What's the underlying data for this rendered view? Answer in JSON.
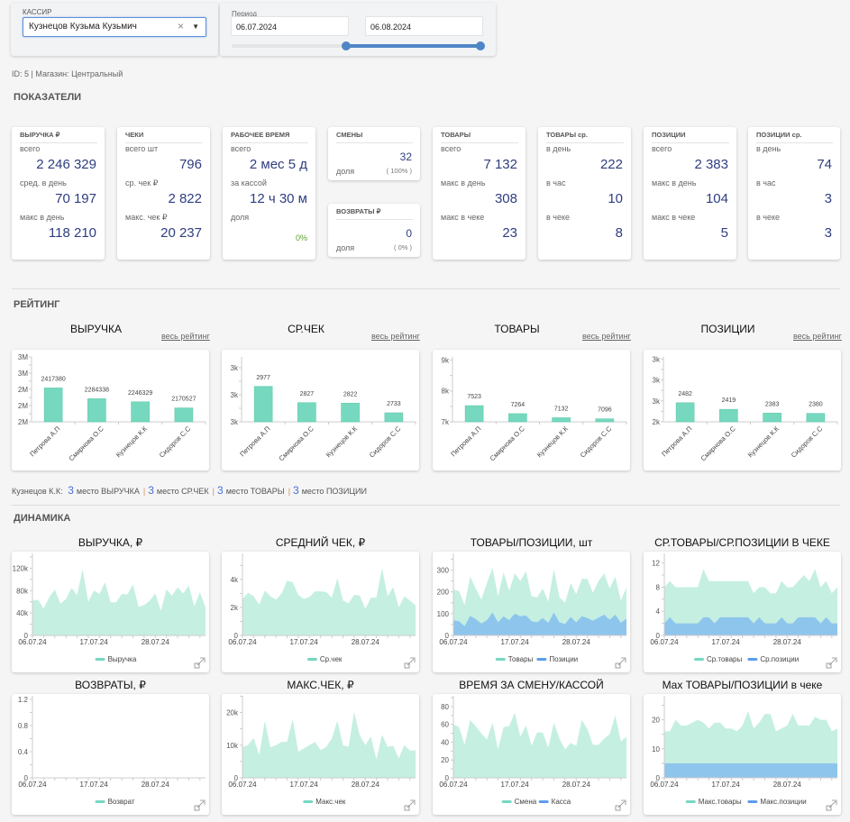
{
  "filters": {
    "cashier_label": "КАССИР",
    "cashier_value": "Кузнецов Кузьма Кузьмич",
    "clear_icon": "×",
    "dropdown_icon": "▼",
    "period_label": "Период",
    "date_from": "06.07.2024",
    "date_to": "06.08.2024",
    "period_slider_range": [
      0.46,
      1.0
    ]
  },
  "info_line": "ID: 5 | Магазин: Центральный",
  "sections": {
    "kpi": "ПОКАЗАТЕЛИ",
    "rating": "РЕЙТИНГ",
    "dynamics": "ДИНАМИКА"
  },
  "kpi_cards": [
    {
      "title": "ВЫРУЧКА ₽",
      "rows": [
        {
          "label": "всего",
          "value": "2 246 329"
        },
        {
          "label": "сред. в день",
          "value": "70 197"
        },
        {
          "label": "макс в день",
          "value": "118 210"
        }
      ]
    },
    {
      "title": "ЧЕКИ",
      "rows": [
        {
          "label": "всего шт",
          "value": "796"
        },
        {
          "label": "ср. чек ₽",
          "value": "2 822"
        },
        {
          "label": "макс. чек ₽",
          "value": "20 237"
        }
      ]
    },
    {
      "title": "РАБОЧЕЕ ВРЕМЯ",
      "rows": [
        {
          "label": "всего",
          "value": "2 мес 5 д"
        },
        {
          "label": "за кассой",
          "value": "12 ч 30 м"
        },
        {
          "label": "доля",
          "value": "0%"
        }
      ]
    },
    {
      "title": "СМЕНЫ",
      "value": "32",
      "share_label": "доля",
      "share": "( 100% )"
    },
    {
      "title": "ВОЗВРАТЫ ₽",
      "value": "0",
      "share_label": "доля",
      "share": "( 0% )"
    },
    {
      "title": "ТОВАРЫ",
      "rows": [
        {
          "label": "всего",
          "value": "7 132"
        },
        {
          "label": "макс в день",
          "value": "308"
        },
        {
          "label": "макс в чеке",
          "value": "23"
        }
      ]
    },
    {
      "title": "ТОВАРЫ ср.",
      "rows": [
        {
          "label": "в день",
          "value": "222"
        },
        {
          "label": "в час",
          "value": "10"
        },
        {
          "label": "в чеке",
          "value": "8"
        }
      ]
    },
    {
      "title": "ПОЗИЦИИ",
      "rows": [
        {
          "label": "всего",
          "value": "2 383"
        },
        {
          "label": "макс в день",
          "value": "104"
        },
        {
          "label": "макс в чеке",
          "value": "5"
        }
      ]
    },
    {
      "title": "ПОЗИЦИИ ср.",
      "rows": [
        {
          "label": "в день",
          "value": "74"
        },
        {
          "label": "в час",
          "value": "3"
        },
        {
          "label": "в чеке",
          "value": "3"
        }
      ]
    }
  ],
  "rating_link": "весь рейтинг",
  "rating_summary": {
    "name": "Кузнецов К.К:",
    "items": [
      {
        "place": "3",
        "text": "место ВЫРУЧКА"
      },
      {
        "place": "3",
        "text": "место СР.ЧЕК"
      },
      {
        "place": "3",
        "text": "место ТОВАРЫ"
      },
      {
        "place": "3",
        "text": "место ПОЗИЦИИ"
      }
    ],
    "separator": "|"
  },
  "colors": {
    "bar": "#76d9bf",
    "green_fill": "#c5efe1",
    "green_legend": "#76d7bf",
    "blue_fill": "#8ec5ec",
    "blue_legend": "#5b9bef",
    "accent": "#4a6fd8"
  },
  "chart_data": [
    {
      "type": "bar",
      "title": "ВЫРУЧКА",
      "categories": [
        "Петрова А.П",
        "Смирнова О.С",
        "Кузнецов К.К",
        "Сидоров С.С"
      ],
      "values": [
        2417380,
        2284338,
        2246329,
        2170527
      ],
      "ylim": [
        2000000,
        2800000
      ],
      "yticks": [
        2000000,
        2200000,
        2400000,
        2600000,
        2800000
      ],
      "ytick_labels": [
        "2M",
        "2M",
        "2M",
        "3M",
        "3M"
      ]
    },
    {
      "type": "bar",
      "title": "СР.ЧЕК",
      "categories": [
        "Петрова А.П",
        "Смирнова О.С",
        "Кузнецов К.К",
        "Сидоров С.С"
      ],
      "values": [
        2977,
        2827,
        2822,
        2733
      ],
      "ylim": [
        2650,
        3250
      ],
      "yticks": [
        2650,
        2900,
        3150
      ],
      "ytick_labels": [
        "3k",
        "3k",
        "3k"
      ]
    },
    {
      "type": "bar",
      "title": "ТОВАРЫ",
      "categories": [
        "Петрова А.П",
        "Смирнова О.С",
        "Кузнецов К.К",
        "Сидоров С.С"
      ],
      "values": [
        7523,
        7264,
        7132,
        7096
      ],
      "ylim": [
        7000,
        9100
      ],
      "yticks": [
        7000,
        8000,
        9000
      ],
      "ytick_labels": [
        "7k",
        "8k",
        "9k"
      ]
    },
    {
      "type": "bar",
      "title": "ПОЗИЦИИ",
      "categories": [
        "Петрова А.П",
        "Смирнова О.С",
        "Кузнецов К.К",
        "Сидоров С.С"
      ],
      "values": [
        2482,
        2419,
        2383,
        2380
      ],
      "ylim": [
        2300,
        2920
      ],
      "yticks": [
        2300,
        2500,
        2700,
        2900
      ],
      "ytick_labels": [
        "2k",
        "3k",
        "3k",
        "3k"
      ]
    },
    {
      "type": "area",
      "title": "ВЫРУЧКА, ₽",
      "xticks": [
        "06.07.24",
        "17.07.24",
        "28.07.24"
      ],
      "ylim": [
        0,
        140000
      ],
      "yticks": [
        0,
        40000,
        80000,
        120000
      ],
      "ytick_labels": [
        "0",
        "40k",
        "80k",
        "120k"
      ],
      "series": [
        {
          "name": "Выручка",
          "color": "green",
          "values": [
            62000,
            64000,
            48000,
            68000,
            82000,
            57000,
            65000,
            85000,
            72000,
            118000,
            60000,
            80000,
            74000,
            95000,
            59000,
            59000,
            74000,
            73000,
            91000,
            51000,
            54000,
            62000,
            75000,
            44000,
            82000,
            71000,
            86000,
            75000,
            89000,
            52000,
            77000,
            50000
          ]
        }
      ]
    },
    {
      "type": "area",
      "title": "СРЕДНИЙ ЧЕК, ₽",
      "xticks": [
        "06.07.24",
        "17.07.24",
        "28.07.24"
      ],
      "ylim": [
        0,
        5600
      ],
      "yticks": [
        0,
        2000,
        4000
      ],
      "ytick_labels": [
        "0",
        "2k",
        "4k"
      ],
      "series": [
        {
          "name": "Ср.чек",
          "color": "green",
          "values": [
            2600,
            3050,
            2800,
            2200,
            3200,
            2800,
            2550,
            3000,
            3900,
            3800,
            2900,
            2600,
            2750,
            3150,
            3150,
            3100,
            2700,
            4100,
            2500,
            2300,
            2900,
            2850,
            1900,
            2700,
            2700,
            4800,
            2800,
            3450,
            2000,
            2800,
            2500,
            2150
          ]
        }
      ]
    },
    {
      "type": "area",
      "title": "ТОВАРЫ/ПОЗИЦИИ, шт",
      "xticks": [
        "06.07.24",
        "17.07.24",
        "28.07.24"
      ],
      "ylim": [
        0,
        360
      ],
      "yticks": [
        0,
        100,
        200,
        300
      ],
      "ytick_labels": [
        "0",
        "100",
        "200",
        "300"
      ],
      "series": [
        {
          "name": "Товары",
          "color": "green",
          "values": [
            210,
            205,
            140,
            270,
            215,
            165,
            240,
            310,
            180,
            290,
            205,
            285,
            250,
            295,
            180,
            175,
            215,
            155,
            305,
            175,
            150,
            240,
            190,
            260,
            260,
            195,
            250,
            285,
            215,
            270,
            160,
            220
          ]
        },
        {
          "name": "Позиции",
          "color": "blue",
          "values": [
            70,
            65,
            42,
            90,
            75,
            55,
            70,
            105,
            60,
            88,
            70,
            100,
            88,
            92,
            65,
            60,
            80,
            58,
            105,
            60,
            52,
            85,
            60,
            88,
            80,
            68,
            82,
            95,
            72,
            95,
            58,
            78
          ]
        }
      ]
    },
    {
      "type": "area",
      "title": "СР.ТОВАРЫ/СР.ПОЗИЦИИ В ЧЕКЕ",
      "xticks": [
        "06.07.24",
        "17.07.24",
        "28.07.24"
      ],
      "ylim": [
        0,
        13
      ],
      "yticks": [
        0,
        4,
        8,
        12
      ],
      "ytick_labels": [
        "0",
        "4",
        "8",
        "12"
      ],
      "series": [
        {
          "name": "Ср.товары",
          "color": "green",
          "values": [
            8,
            9,
            8,
            8,
            8,
            8,
            8,
            11,
            9,
            9,
            9,
            9,
            9,
            9,
            9,
            9,
            7,
            8,
            8,
            7,
            7,
            9,
            8,
            8,
            9,
            10,
            9,
            11,
            8,
            9,
            7,
            8
          ]
        },
        {
          "name": "Ср.позиции",
          "color": "blue",
          "values": [
            2,
            3,
            2,
            2,
            2,
            2,
            2,
            3,
            3,
            2,
            3,
            3,
            3,
            3,
            3,
            3,
            2,
            3,
            2,
            2,
            2,
            3,
            2,
            2,
            3,
            3,
            3,
            3,
            2,
            3,
            2,
            2
          ]
        }
      ]
    },
    {
      "type": "area",
      "title": "ВОЗВРАТЫ, ₽",
      "xticks": [
        "06.07.24",
        "17.07.24",
        "28.07.24"
      ],
      "ylim": [
        0,
        1.2
      ],
      "yticks": [
        0,
        0.4,
        0.8,
        1.2
      ],
      "ytick_labels": [
        "0",
        "0.4",
        "0.8",
        "1.2"
      ],
      "series": [
        {
          "name": "Возврат",
          "color": "green",
          "values": [
            0,
            0,
            0,
            0,
            0,
            0,
            0,
            0,
            0,
            0,
            0,
            0,
            0,
            0,
            0,
            0,
            0,
            0,
            0,
            0,
            0,
            0,
            0,
            0,
            0,
            0,
            0,
            0,
            0,
            0,
            0,
            0
          ]
        }
      ]
    },
    {
      "type": "area",
      "title": "МАКС.ЧЕК, ₽",
      "xticks": [
        "06.07.24",
        "17.07.24",
        "28.07.24"
      ],
      "ylim": [
        0,
        24000
      ],
      "yticks": [
        0,
        10000,
        20000
      ],
      "ytick_labels": [
        "0",
        "10k",
        "20k"
      ],
      "series": [
        {
          "name": "Макс.чек",
          "color": "green",
          "values": [
            9500,
            10000,
            12200,
            7000,
            17500,
            9300,
            10000,
            11000,
            11000,
            18000,
            8000,
            9000,
            10000,
            11000,
            8500,
            9500,
            12000,
            17500,
            10000,
            9500,
            20200,
            13000,
            10000,
            12600,
            5600,
            13200,
            9500,
            9800,
            6000,
            10000,
            8300,
            8400
          ]
        }
      ]
    },
    {
      "type": "area",
      "title": "ВРЕМЯ ЗА СМЕНУ/КАССОЙ",
      "xticks": [
        "06.07.24",
        "17.07.24",
        "28.07.24"
      ],
      "ylim": [
        0,
        88
      ],
      "yticks": [
        0,
        20,
        40,
        60,
        80
      ],
      "ytick_labels": [
        "0",
        "20",
        "40",
        "60",
        "80"
      ],
      "series": [
        {
          "name": "Смена",
          "color": "green",
          "values": [
            60,
            57,
            37,
            65,
            58,
            50,
            43,
            62,
            32,
            57,
            58,
            73,
            46,
            59,
            36,
            51,
            51,
            34,
            62,
            44,
            32,
            39,
            36,
            65,
            55,
            37,
            37,
            44,
            49,
            70,
            41,
            46
          ]
        },
        {
          "name": "Касса",
          "color": "blue",
          "values": [
            0,
            0,
            0,
            0,
            0,
            0,
            0,
            0,
            0,
            0,
            0,
            0,
            0,
            0,
            0,
            0,
            0,
            0,
            0,
            0,
            0,
            0,
            0,
            0,
            0,
            0,
            0,
            0,
            0,
            0,
            0,
            0
          ]
        }
      ]
    },
    {
      "type": "area",
      "title": "Max ТОВАРЫ/ПОЗИЦИИ в чеке",
      "xticks": [
        "06.07.24",
        "17.07.24",
        "28.07.24"
      ],
      "ylim": [
        0,
        27
      ],
      "yticks": [
        0,
        10,
        20
      ],
      "ytick_labels": [
        "0",
        "10",
        "20"
      ],
      "series": [
        {
          "name": "Макс.товары",
          "color": "green",
          "values": [
            16,
            16,
            20,
            18,
            18,
            19,
            20,
            19,
            17,
            19,
            19,
            17,
            17,
            16,
            18,
            23,
            17,
            19,
            22,
            22,
            16,
            17,
            18,
            22,
            18,
            18,
            18,
            21,
            20,
            20,
            16,
            17
          ]
        },
        {
          "name": "Макс.позиции",
          "color": "blue",
          "values": [
            5,
            5,
            5,
            5,
            5,
            5,
            5,
            5,
            5,
            5,
            5,
            5,
            5,
            5,
            5,
            5,
            5,
            5,
            5,
            5,
            5,
            5,
            5,
            5,
            5,
            5,
            5,
            5,
            5,
            5,
            5,
            5
          ]
        }
      ]
    }
  ]
}
